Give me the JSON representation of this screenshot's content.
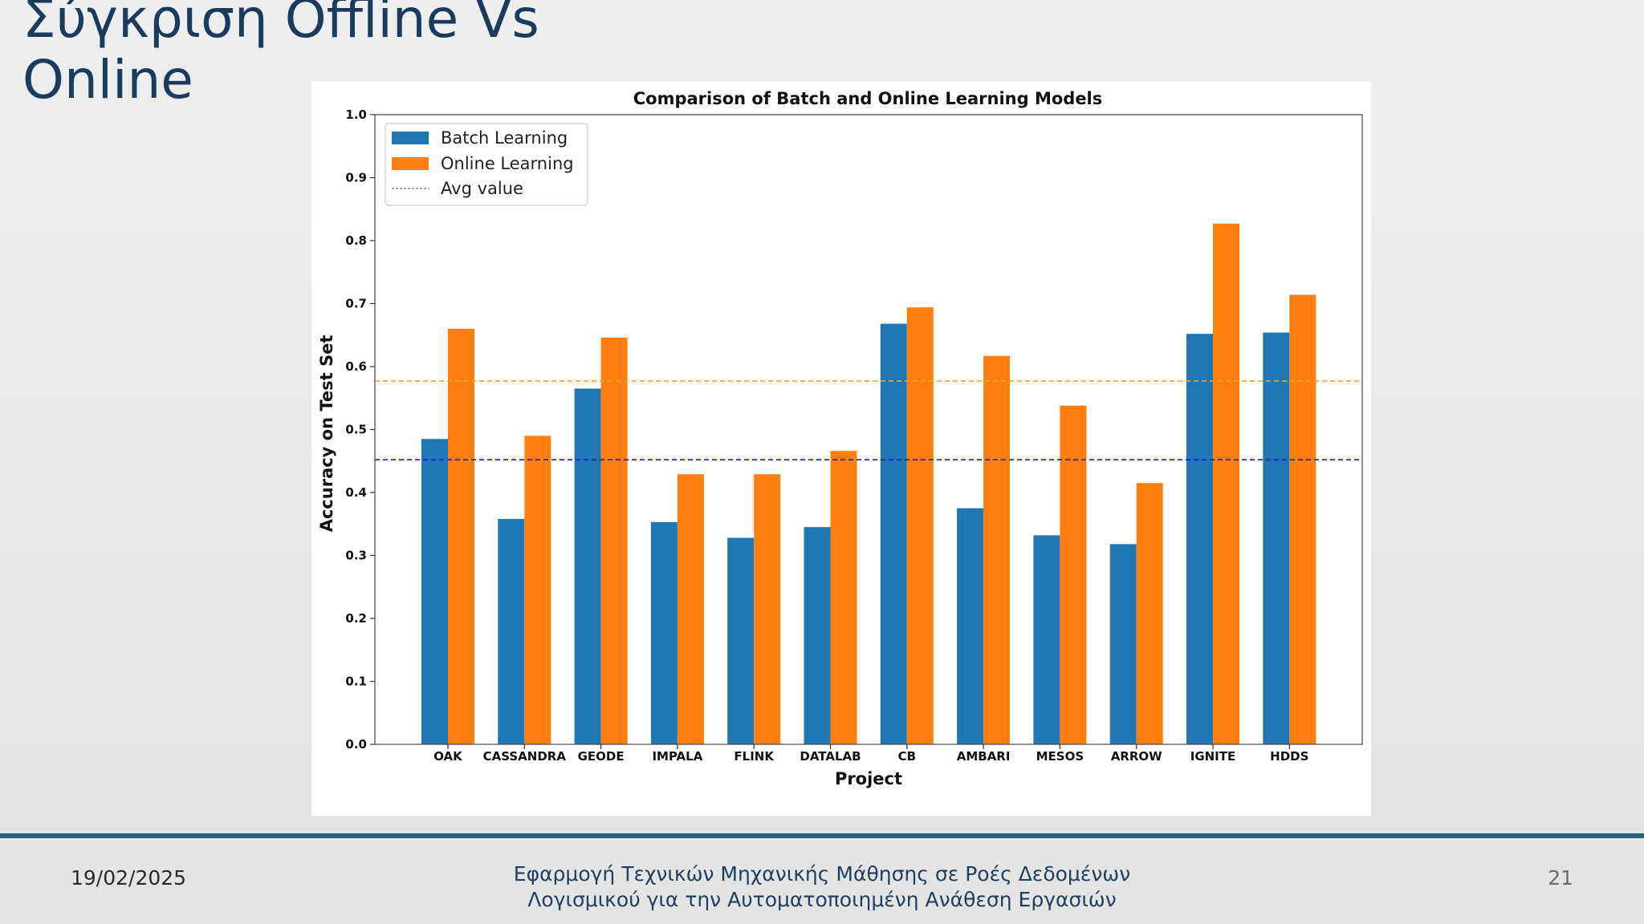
{
  "slide": {
    "title": "Σύγκριση Offline Vs Online"
  },
  "footer": {
    "date": "19/02/2025",
    "subtitle_line1": "Εφαρμογή Τεχνικών Μηχανικής Μάθησης σε Ροές Δεδομένων",
    "subtitle_line2": "Λογισμικού για την Αυτοματοποιημένη Ανάθεση Εργασιών",
    "page_number": "21"
  },
  "chart_data": {
    "type": "bar",
    "title": "Comparison of Batch and Online Learning Models",
    "xlabel": "Project",
    "ylabel": "Accuracy on Test Set",
    "ylim": [
      0,
      1.0
    ],
    "yticks": [
      "0.0",
      "0.1",
      "0.2",
      "0.3",
      "0.4",
      "0.5",
      "0.6",
      "0.7",
      "0.8",
      "0.9",
      "1.0"
    ],
    "categories": [
      "OAK",
      "CASSANDRA",
      "GEODE",
      "IMPALA",
      "FLINK",
      "DATALAB",
      "CB",
      "AMBARI",
      "MESOS",
      "ARROW",
      "IGNITE",
      "HDDS"
    ],
    "series": [
      {
        "name": "Batch Learning",
        "color": "#1f77b4",
        "values": [
          0.485,
          0.358,
          0.565,
          0.353,
          0.328,
          0.345,
          0.668,
          0.375,
          0.332,
          0.318,
          0.652,
          0.654
        ]
      },
      {
        "name": "Online Learning",
        "color": "#ff7f0e",
        "values": [
          0.66,
          0.49,
          0.646,
          0.429,
          0.429,
          0.466,
          0.694,
          0.617,
          0.538,
          0.415,
          0.827,
          0.714
        ]
      }
    ],
    "avg_lines": [
      {
        "series": "Batch Learning",
        "value": 0.452,
        "color": "#1a1aff"
      },
      {
        "series": "Online Learning",
        "value": 0.577,
        "color": "#ffa31a"
      }
    ],
    "legend": {
      "position": "top-left",
      "entries": [
        "Batch Learning",
        "Online Learning",
        "Avg value"
      ]
    },
    "grid": false
  }
}
